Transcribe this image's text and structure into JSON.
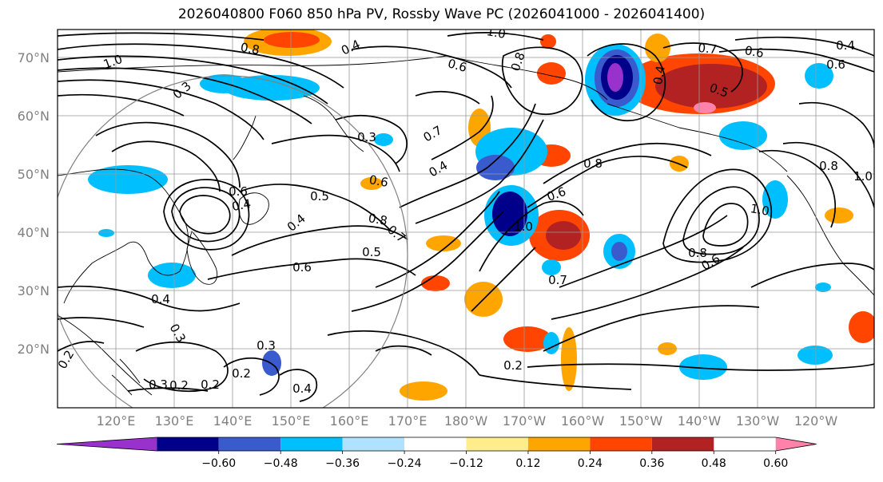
{
  "title": "2026040800 F060 850 hPa PV, Rossby Wave PC (2026041000 - 2026041400)",
  "lat_labels": [
    "70°N",
    "60°N",
    "50°N",
    "40°N",
    "30°N",
    "20°N"
  ],
  "lon_labels": [
    "120°E",
    "130°E",
    "140°E",
    "150°E",
    "160°E",
    "170°E",
    "180°W",
    "170°W",
    "160°W",
    "150°W",
    "140°W",
    "130°W",
    "120°W"
  ],
  "colorbar": {
    "colors": [
      "#9932cc",
      "#00008b",
      "#3a5bcd",
      "#00bfff",
      "#b0e2ff",
      "#ffffff",
      "#ffec8b",
      "#ffa500",
      "#ff4500",
      "#b22222",
      "#ff82ab"
    ],
    "tick_labels": [
      "−0.60",
      "−0.48",
      "−0.36",
      "−0.24",
      "−0.12",
      "0.12",
      "0.24",
      "0.36",
      "0.48",
      "0.60"
    ]
  },
  "contour_labels": [
    "1.0",
    "0.8",
    "0.3",
    "0.4",
    "0.6",
    "0.8",
    "1.0",
    "0.7",
    "0.6",
    "0.4",
    "0.5",
    "0.4",
    "0.3",
    "0.7",
    "0.6",
    "0.4",
    "0.8",
    "0.6",
    "0.5",
    "0.4",
    "0.8",
    "0.7",
    "0.5",
    "0.6",
    "1.0",
    "1.0",
    "0.8",
    "0.7",
    "0.8",
    "0.6",
    "1.0",
    "0.4",
    "0.3",
    "0.3",
    "0.2",
    "0.2",
    "0.2",
    "0.2",
    "0.3",
    "0.4",
    "0.2",
    "0.6",
    "0.6",
    "0.4"
  ]
}
